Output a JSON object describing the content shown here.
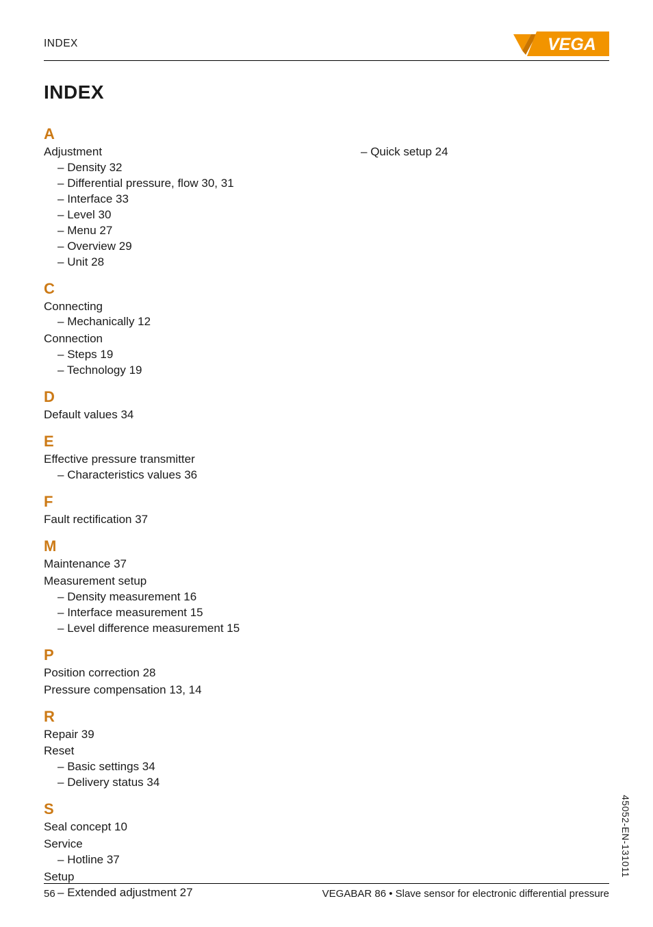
{
  "header": {
    "section_label": "INDEX"
  },
  "logo": {
    "brand_text": "VEGA",
    "brand_bg": "#f29400",
    "brand_fg": "#ffffff",
    "glyph_fill": "#f29400"
  },
  "title": "INDEX",
  "accent_color": "#cc7a16",
  "text_color": "#1a1a1a",
  "font_sizes": {
    "header": 15.5,
    "title": 28,
    "letter": 22,
    "entry": 17,
    "footer": 15,
    "vtext": 14
  },
  "sections": [
    {
      "letter": "A",
      "entries": [
        {
          "label": "Adjustment",
          "children": [
            {
              "label": "Density  32"
            },
            {
              "label": "Differential pressure, flow  30, 31"
            },
            {
              "label": "Interface  33"
            },
            {
              "label": "Level  30"
            },
            {
              "label": "Menu  27"
            },
            {
              "label": "Overview  29"
            },
            {
              "label": "Unit  28"
            }
          ]
        }
      ]
    },
    {
      "letter": "C",
      "entries": [
        {
          "label": "Connecting",
          "children": [
            {
              "label": "Mechanically  12"
            }
          ]
        },
        {
          "label": "Connection",
          "children": [
            {
              "label": "Steps  19"
            },
            {
              "label": "Technology  19"
            }
          ]
        }
      ]
    },
    {
      "letter": "D",
      "entries": [
        {
          "label": "Default values  34"
        }
      ]
    },
    {
      "letter": "E",
      "entries": [
        {
          "label": "Effective pressure transmitter",
          "children": [
            {
              "label": "Characteristics values  36"
            }
          ]
        }
      ]
    },
    {
      "letter": "F",
      "entries": [
        {
          "label": "Fault rectification  37"
        }
      ]
    },
    {
      "letter": "M",
      "entries": [
        {
          "label": "Maintenance  37"
        },
        {
          "label": "Measurement setup",
          "children": [
            {
              "label": "Density measurement  16"
            },
            {
              "label": "Interface measurement  15"
            },
            {
              "label": "Level difference measurement  15"
            }
          ]
        }
      ]
    },
    {
      "letter": "P",
      "entries": [
        {
          "label": "Position correction  28"
        },
        {
          "label": "Pressure compensation  13, 14"
        }
      ]
    },
    {
      "letter": "R",
      "entries": [
        {
          "label": "Repair  39"
        },
        {
          "label": "Reset",
          "children": [
            {
              "label": "Basic settings  34"
            },
            {
              "label": "Delivery status  34"
            }
          ]
        }
      ]
    },
    {
      "letter": "S",
      "entries": [
        {
          "label": "Seal concept  10"
        },
        {
          "label": "Service",
          "children": [
            {
              "label": "Hotline  37"
            }
          ]
        },
        {
          "label": "Setup",
          "children": [
            {
              "label": "Extended adjustment  27"
            }
          ]
        }
      ]
    }
  ],
  "right_column_first_item": {
    "label": "Quick setup  24"
  },
  "vtext": "45052-EN-131011",
  "footer": {
    "page_no": "56",
    "product_line": "VEGABAR 86 • Slave sensor for electronic differential pressure"
  }
}
